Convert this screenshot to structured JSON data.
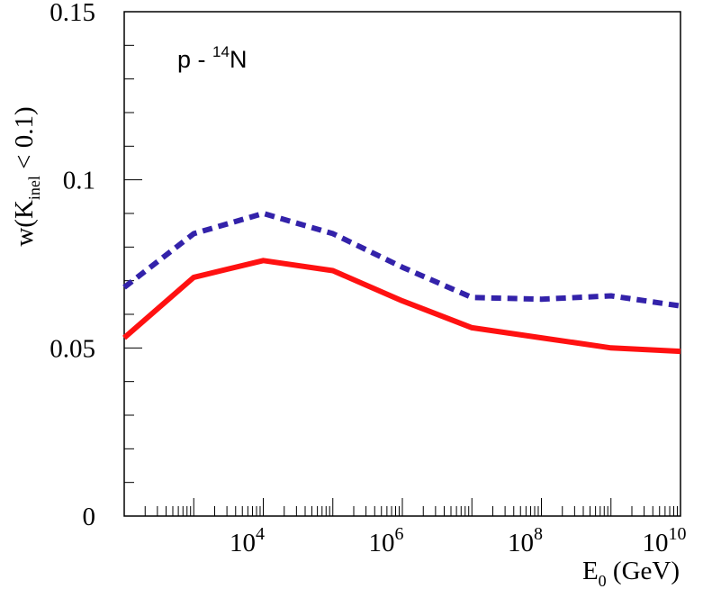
{
  "chart_data": {
    "type": "line",
    "xscale": "log",
    "xlim": [
      100,
      10000000000
    ],
    "ylim": [
      0,
      0.15
    ],
    "xlabel": {
      "base": "E",
      "sub": "0",
      "rest": " (GeV)"
    },
    "ylabel": {
      "base": "w(K",
      "sub": "inel",
      "rest": " < 0.1)"
    },
    "annotation": {
      "base": "p  - ",
      "sup": "14",
      "rest": "N"
    },
    "y_ticks": [
      {
        "value": 0,
        "label": "0"
      },
      {
        "value": 0.05,
        "label": "0.05"
      },
      {
        "value": 0.1,
        "label": "0.1"
      },
      {
        "value": 0.15,
        "label": "0.15"
      }
    ],
    "x_ticks": [
      {
        "value": 10000,
        "base": "10",
        "exp": "4"
      },
      {
        "value": 1000000,
        "base": "10",
        "exp": "6"
      },
      {
        "value": 100000000,
        "base": "10",
        "exp": "8"
      },
      {
        "value": 10000000000,
        "base": "10",
        "exp": "10"
      }
    ],
    "series": [
      {
        "color": "#3322aa",
        "style": "dashed",
        "x": [
          100,
          1000,
          10000,
          100000,
          1000000,
          10000000,
          100000000,
          1000000000,
          10000000000
        ],
        "y": [
          0.068,
          0.084,
          0.09,
          0.084,
          0.074,
          0.065,
          0.0645,
          0.0655,
          0.0625
        ]
      },
      {
        "color": "#ff1111",
        "style": "solid",
        "x": [
          100,
          1000,
          10000,
          100000,
          1000000,
          10000000,
          100000000,
          1000000000,
          10000000000
        ],
        "y": [
          0.053,
          0.071,
          0.076,
          0.073,
          0.064,
          0.056,
          0.053,
          0.05,
          0.049
        ]
      }
    ],
    "grid": false,
    "legend": false
  }
}
